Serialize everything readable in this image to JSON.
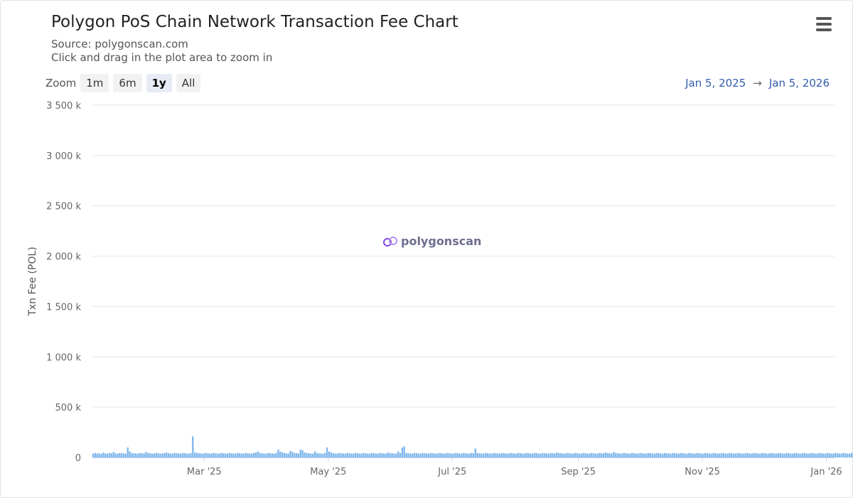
{
  "header": {
    "title": "Polygon PoS Chain Network Transaction Fee Chart",
    "source": "Source: polygonscan.com",
    "hint": "Click and drag in the plot area to zoom in",
    "menu_icon": "hamburger-menu-icon"
  },
  "zoom": {
    "label": "Zoom",
    "options": [
      "1m",
      "6m",
      "1y",
      "All"
    ],
    "active": "1y"
  },
  "range": {
    "from": "Jan 5, 2025",
    "arrow": "→",
    "to": "Jan 5, 2026"
  },
  "watermark": {
    "text": "polygonscan",
    "icon": "polygon-logo-icon"
  },
  "colors": {
    "bar": "#7cb5ec",
    "grid": "#e6e6e6",
    "axis_text": "#666666",
    "range_text": "#335cad"
  },
  "chart_data": {
    "type": "bar",
    "ylabel": "Txn Fee (POL)",
    "ylim": [
      0,
      3500000
    ],
    "yticks": [
      0,
      500000,
      1000000,
      1500000,
      2000000,
      2500000,
      3000000,
      3500000
    ],
    "ytick_labels": [
      "0",
      "500 k",
      "1 000 k",
      "1 500 k",
      "2 000 k",
      "2 500 k",
      "3 000 k",
      "3 500 k"
    ],
    "xlim": [
      "2025-01-05",
      "2026-01-05"
    ],
    "xticks": [
      "2025-03-01",
      "2025-05-01",
      "2025-07-01",
      "2025-09-01",
      "2025-11-01",
      "2026-01-01"
    ],
    "xtick_labels": [
      "Mar '25",
      "May '25",
      "Jul '25",
      "Sep '25",
      "Nov '25",
      "Jan '26"
    ],
    "grid": true,
    "series": [
      {
        "start": "2025-01-05",
        "values": [
          40000,
          45000,
          38000,
          42000,
          35000,
          50000,
          40000,
          38000,
          45000,
          42000,
          55000,
          40000,
          38000,
          45000,
          42000,
          40000,
          38000,
          100000,
          60000,
          45000,
          42000,
          40000,
          38000,
          45000,
          42000,
          40000,
          55000,
          45000,
          42000,
          38000,
          40000,
          45000,
          42000,
          38000,
          40000,
          45000,
          50000,
          42000,
          40000,
          38000,
          45000,
          42000,
          40000,
          38000,
          45000,
          42000,
          40000,
          38000,
          45000,
          210000,
          50000,
          45000,
          42000,
          40000,
          38000,
          45000,
          42000,
          40000,
          38000,
          45000,
          42000,
          40000,
          38000,
          45000,
          42000,
          40000,
          38000,
          45000,
          42000,
          40000,
          38000,
          45000,
          42000,
          40000,
          38000,
          45000,
          42000,
          40000,
          38000,
          45000,
          50000,
          60000,
          45000,
          42000,
          40000,
          38000,
          45000,
          42000,
          40000,
          38000,
          45000,
          80000,
          60000,
          50000,
          45000,
          42000,
          40000,
          65000,
          55000,
          45000,
          42000,
          40000,
          80000,
          70000,
          50000,
          45000,
          42000,
          40000,
          38000,
          60000,
          45000,
          42000,
          40000,
          38000,
          45000,
          100000,
          60000,
          50000,
          42000,
          40000,
          38000,
          45000,
          42000,
          40000,
          38000,
          45000,
          42000,
          40000,
          38000,
          45000,
          42000,
          40000,
          38000,
          45000,
          42000,
          40000,
          38000,
          45000,
          42000,
          40000,
          38000,
          45000,
          42000,
          40000,
          38000,
          50000,
          45000,
          42000,
          40000,
          38000,
          60000,
          45000,
          100000,
          110000,
          45000,
          42000,
          40000,
          38000,
          45000,
          42000,
          40000,
          38000,
          45000,
          42000,
          40000,
          38000,
          45000,
          42000,
          40000,
          38000,
          45000,
          42000,
          40000,
          38000,
          45000,
          42000,
          40000,
          38000,
          45000,
          42000,
          40000,
          38000,
          45000,
          42000,
          40000,
          38000,
          45000,
          42000,
          90000,
          45000,
          42000,
          40000,
          38000,
          45000,
          42000,
          40000,
          38000,
          45000,
          42000,
          40000,
          38000,
          45000,
          42000,
          40000,
          38000,
          45000,
          42000,
          40000,
          38000,
          45000,
          42000,
          40000,
          38000,
          45000,
          42000,
          40000,
          38000,
          45000,
          42000,
          40000,
          38000,
          45000,
          42000,
          40000,
          38000,
          45000,
          42000,
          40000,
          50000,
          45000,
          42000,
          40000,
          38000,
          45000,
          42000,
          40000,
          38000,
          45000,
          42000,
          40000,
          38000,
          45000,
          42000,
          40000,
          38000,
          45000,
          42000,
          40000,
          38000,
          45000,
          42000,
          40000,
          50000,
          45000,
          42000,
          40000,
          55000,
          45000,
          42000,
          40000,
          38000,
          45000,
          42000,
          40000,
          38000,
          45000,
          42000,
          40000,
          38000,
          45000,
          42000,
          40000,
          38000,
          45000,
          42000,
          40000,
          38000,
          45000,
          42000,
          40000,
          38000,
          45000,
          42000,
          40000,
          38000,
          45000,
          42000,
          40000,
          38000,
          45000,
          42000,
          40000,
          38000,
          45000,
          42000,
          40000,
          38000,
          45000,
          42000,
          40000,
          38000,
          45000,
          42000,
          40000,
          38000,
          45000,
          42000,
          40000,
          38000,
          45000,
          42000,
          40000,
          38000,
          45000,
          42000,
          40000,
          38000,
          45000,
          42000,
          40000,
          38000,
          45000,
          42000,
          40000,
          38000,
          45000,
          42000,
          40000,
          38000,
          45000,
          42000,
          40000,
          38000,
          45000,
          42000,
          40000,
          38000,
          45000,
          42000,
          40000,
          38000,
          45000,
          42000,
          40000,
          38000,
          45000,
          42000,
          40000,
          38000,
          45000,
          42000,
          40000,
          38000,
          45000,
          42000,
          40000,
          38000,
          45000,
          42000,
          40000,
          38000,
          45000,
          42000,
          40000,
          38000,
          45000,
          42000,
          40000,
          38000,
          45000,
          42000,
          40000,
          38000,
          45000,
          42000,
          40000,
          38000,
          45000,
          42000,
          40000,
          38000,
          45000,
          42000,
          40000,
          38000,
          45000,
          42000,
          40000,
          38000,
          45000,
          42000,
          40000,
          38000,
          45000,
          42000,
          40000,
          38000,
          45000,
          42000,
          40000,
          38000,
          45000,
          42000,
          40000,
          38000,
          45000,
          42000,
          40000,
          38000,
          45000,
          42000,
          40000,
          38000,
          45000,
          42000,
          40000,
          38000,
          45000,
          42000,
          40000,
          38000,
          45000,
          42000,
          40000,
          38000,
          45000,
          42000,
          40000,
          38000,
          45000,
          42000,
          40000,
          38000,
          45000,
          42000,
          40000,
          38000,
          45000,
          42000,
          40000,
          38000,
          45000,
          42000,
          40000,
          38000,
          45000,
          42000,
          40000,
          38000,
          45000,
          42000,
          40000,
          38000,
          45000,
          42000,
          40000,
          38000,
          45000,
          42000,
          40000,
          38000,
          45000,
          42000,
          40000,
          38000,
          45000,
          42000,
          40000,
          38000,
          45000,
          42000,
          40000,
          38000,
          45000,
          42000,
          40000,
          38000,
          45000,
          42000,
          40000
        ]
      }
    ]
  }
}
